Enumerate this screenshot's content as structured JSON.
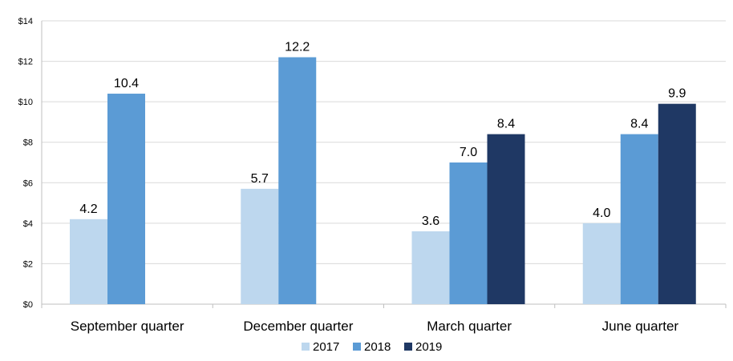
{
  "chart_data": {
    "type": "bar",
    "categories": [
      "September quarter",
      "December quarter",
      "March quarter",
      "June quarter"
    ],
    "series": [
      {
        "name": "2017",
        "color": "#BDD7EE",
        "values": [
          4.2,
          5.7,
          3.6,
          4.0
        ]
      },
      {
        "name": "2018",
        "color": "#5B9BD5",
        "values": [
          10.4,
          12.2,
          7.0,
          8.4
        ]
      },
      {
        "name": "2019",
        "color": "#1F3864",
        "values": [
          null,
          null,
          8.4,
          9.9
        ]
      }
    ],
    "ylim": [
      0,
      14
    ],
    "yticks": [
      0,
      2,
      4,
      6,
      8,
      10,
      12,
      14
    ],
    "ytick_labels": [
      "$0",
      "$2",
      "$4",
      "$6",
      "$8",
      "$10",
      "$12",
      "$14"
    ],
    "data_labels": [
      [
        "4.2",
        "5.7",
        "3.6",
        "4.0"
      ],
      [
        "10.4",
        "12.2",
        "7.0",
        "8.4"
      ],
      [
        null,
        null,
        "8.4",
        "9.9"
      ]
    ],
    "grid": true,
    "legend_position": "bottom"
  }
}
